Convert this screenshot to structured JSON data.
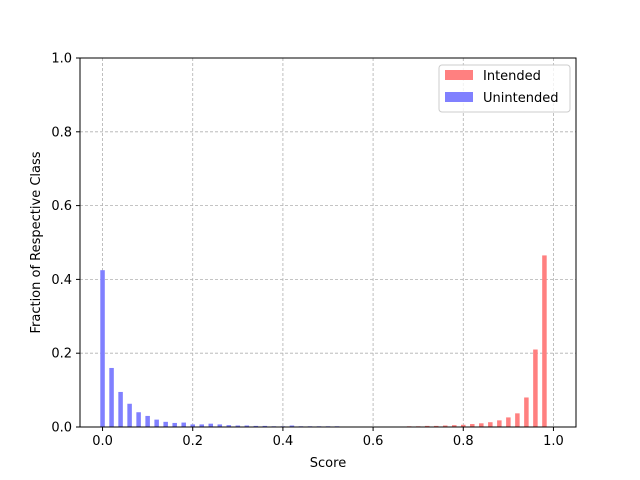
{
  "chart_data": {
    "type": "bar",
    "title": "",
    "xlabel": "Score",
    "ylabel": "Fraction of Respective Class",
    "xlim": [
      -0.05,
      1.05
    ],
    "ylim": [
      0,
      1.0
    ],
    "xticks": [
      "0.0",
      "0.2",
      "0.4",
      "0.6",
      "0.8",
      "1.0"
    ],
    "yticks": [
      "0.0",
      "0.2",
      "0.4",
      "0.6",
      "0.8",
      "1.0"
    ],
    "grid": true,
    "legend_position": "top-right",
    "bin_width": 0.02,
    "series": [
      {
        "name": "Intended",
        "color": "#ff8080",
        "bins": [
          0.0,
          0.02,
          0.04,
          0.06,
          0.08,
          0.1,
          0.12,
          0.14,
          0.16,
          0.18,
          0.2,
          0.22,
          0.24,
          0.26,
          0.28,
          0.3,
          0.32,
          0.34,
          0.36,
          0.38,
          0.4,
          0.42,
          0.44,
          0.46,
          0.48,
          0.5,
          0.52,
          0.54,
          0.56,
          0.58,
          0.6,
          0.62,
          0.64,
          0.66,
          0.68,
          0.7,
          0.72,
          0.74,
          0.76,
          0.78,
          0.8,
          0.82,
          0.84,
          0.86,
          0.88,
          0.9,
          0.92,
          0.94,
          0.96,
          0.98
        ],
        "values": [
          0.0,
          0.0,
          0.0,
          0.0,
          0.0,
          0.0,
          0.0,
          0.0,
          0.0,
          0.0,
          0.0,
          0.0,
          0.0,
          0.0,
          0.0,
          0.0,
          0.0,
          0.0,
          0.0,
          0.0,
          0.0,
          0.0,
          0.001,
          0.001,
          0.001,
          0.001,
          0.001,
          0.001,
          0.001,
          0.001,
          0.001,
          0.001,
          0.001,
          0.001,
          0.002,
          0.002,
          0.003,
          0.003,
          0.004,
          0.005,
          0.006,
          0.008,
          0.01,
          0.013,
          0.018,
          0.026,
          0.037,
          0.08,
          0.21,
          0.465
        ]
      },
      {
        "name": "Unintended",
        "color": "#8080ff",
        "bins": [
          0.0,
          0.02,
          0.04,
          0.06,
          0.08,
          0.1,
          0.12,
          0.14,
          0.16,
          0.18,
          0.2,
          0.22,
          0.24,
          0.26,
          0.28,
          0.3,
          0.32,
          0.34,
          0.36,
          0.38,
          0.4,
          0.42,
          0.44,
          0.46,
          0.48,
          0.5,
          0.52,
          0.54,
          0.56,
          0.58,
          0.6,
          0.62,
          0.64,
          0.66,
          0.68,
          0.7,
          0.72,
          0.74,
          0.76,
          0.78,
          0.8,
          0.82,
          0.84,
          0.86,
          0.88,
          0.9,
          0.92,
          0.94,
          0.96,
          0.98
        ],
        "values": [
          0.425,
          0.16,
          0.095,
          0.063,
          0.04,
          0.03,
          0.02,
          0.014,
          0.011,
          0.012,
          0.007,
          0.007,
          0.009,
          0.007,
          0.005,
          0.004,
          0.004,
          0.003,
          0.003,
          0.002,
          0.002,
          0.004,
          0.002,
          0.002,
          0.002,
          0.002,
          0.002,
          0.001,
          0.001,
          0.001,
          0.001,
          0.001,
          0.001,
          0.001,
          0.001,
          0.001,
          0.0,
          0.0,
          0.0,
          0.0,
          0.0,
          0.0,
          0.0,
          0.0,
          0.0,
          0.0,
          0.0,
          0.0,
          0.0,
          0.0
        ]
      }
    ]
  }
}
